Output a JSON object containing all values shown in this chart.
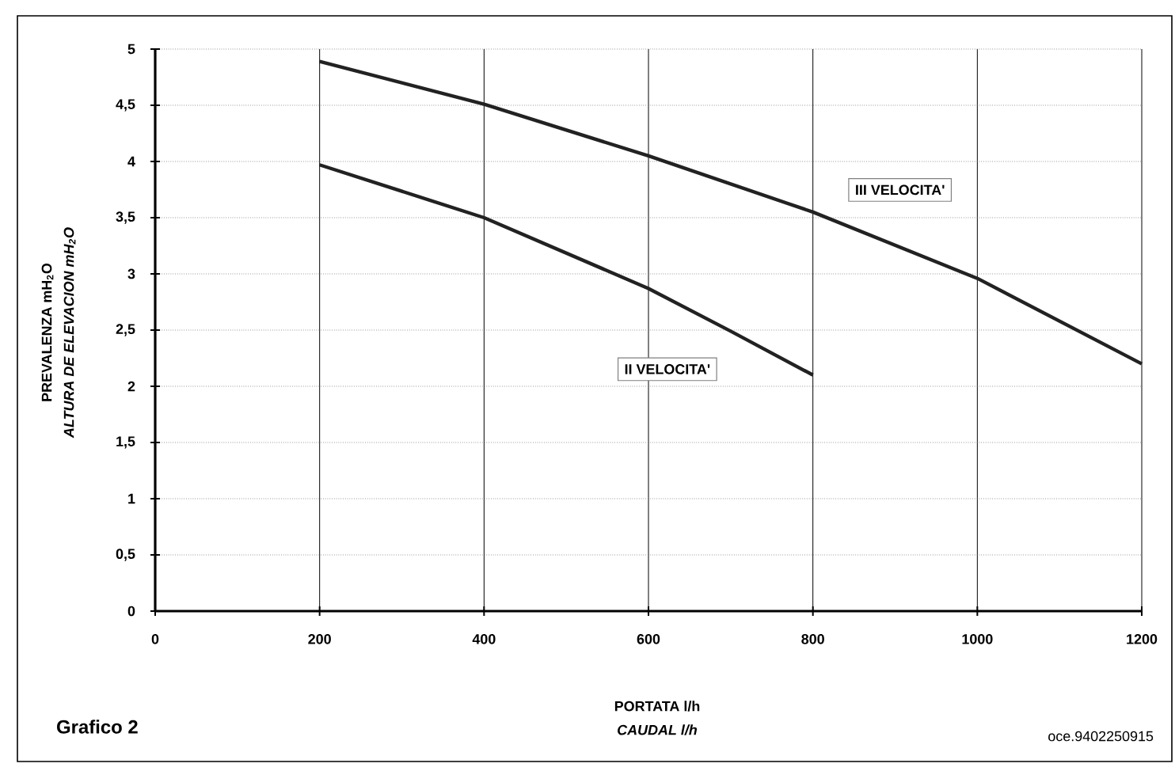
{
  "chart_data": {
    "type": "line",
    "title": "Grafico 2",
    "xlabel": "PORTATA l/h",
    "ylabel": "PREVALENZA mH$_{2}$O",
    "annotations": [
      "ALTURA DE ELEVACION mH$_{2}$O",
      "CAUDAL l/h",
      "oce.9402250915"
    ],
    "xlim": [
      0,
      1200
    ],
    "ylim": [
      0,
      5
    ],
    "xticks": [
      0,
      200,
      400,
      600,
      800,
      1000,
      1200
    ],
    "yticks": [
      0,
      {
        "value": 0.5,
        "label": "0,5"
      },
      1,
      {
        "value": 1.5,
        "label": "1,5"
      },
      2,
      {
        "value": 2.5,
        "label": "2,5"
      },
      3,
      {
        "value": 3.5,
        "label": "3,5"
      },
      4,
      {
        "value": 4.5,
        "label": "4,5"
      },
      5
    ],
    "grid": true,
    "line_style": "solid",
    "series": [
      {
        "name": "III VELOCITA'",
        "color": "#222222",
        "x": [
          200,
          400,
          600,
          800,
          1000,
          1200
        ],
        "values": [
          4.89,
          4.51,
          4.05,
          3.55,
          2.96,
          2.2
        ]
      },
      {
        "name": "II VELOCITA'",
        "color": "#222222",
        "x": [
          200,
          400,
          600,
          700,
          800
        ],
        "values": [
          3.97,
          3.5,
          2.87,
          2.49,
          2.1
        ]
      }
    ]
  }
}
